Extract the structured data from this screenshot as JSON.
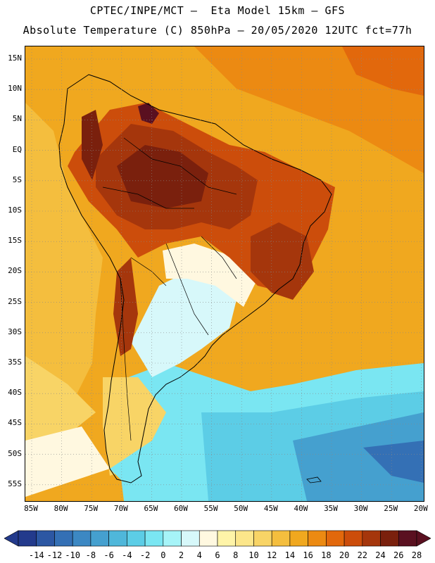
{
  "header": {
    "line1": "CPTEC/INPE/MCT –  Eta Model 15km – GFS",
    "line2": "Absolute Temperature (C) 850hPa – 20/05/2020 12UTC fct=77h"
  },
  "axes": {
    "lat_labels": [
      "15N",
      "10N",
      "5N",
      "EQ",
      "5S",
      "10S",
      "15S",
      "20S",
      "25S",
      "30S",
      "35S",
      "40S",
      "45S",
      "50S",
      "55S"
    ],
    "lon_labels": [
      "85W",
      "80W",
      "75W",
      "70W",
      "65W",
      "60W",
      "55W",
      "50W",
      "45W",
      "40W",
      "35W",
      "30W",
      "25W",
      "20W"
    ]
  },
  "colorbar": {
    "labels": [
      "-14",
      "-12",
      "-10",
      "-8",
      "-6",
      "-4",
      "-2",
      "0",
      "2",
      "4",
      "6",
      "8",
      "10",
      "12",
      "14",
      "16",
      "18",
      "20",
      "22",
      "24",
      "26",
      "28"
    ],
    "colors": [
      "#233a8c",
      "#2c57a3",
      "#3470b5",
      "#3c88c3",
      "#45a0cf",
      "#4fb7da",
      "#5ccde6",
      "#7ae6f2",
      "#a6f4f8",
      "#d7f8fa",
      "#fff8e0",
      "#fff4a8",
      "#fce68a",
      "#f8d466",
      "#f4be3e",
      "#f0a81f",
      "#ec8a12",
      "#e2680c",
      "#cc4d0b",
      "#a5360c",
      "#7a200d",
      "#5a1020"
    ]
  },
  "map": {
    "field_colors": {
      "very_hot": "#7a200d",
      "hot": "#a5360c",
      "warm": "#cc4d0b",
      "orange": "#e2680c",
      "light_orange": "#ec8a12",
      "amber": "#f0a81f",
      "yellow": "#f8d466",
      "cream": "#fff8e0",
      "pale_cyan": "#d7f8fa",
      "cyan": "#7ae6f2",
      "sky": "#5ccde6",
      "blue": "#45a0cf",
      "deep_blue": "#3470b5"
    },
    "gridlines": "dotted",
    "coastline_color": "#000000"
  }
}
